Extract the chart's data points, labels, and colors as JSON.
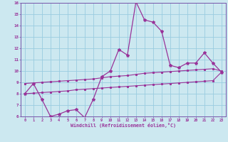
{
  "xlabel": "Windchill (Refroidissement éolien,°C)",
  "bg_color": "#cce8f0",
  "grid_color": "#99cce0",
  "line_color": "#993399",
  "spine_color": "#7755aa",
  "xlim": [
    -0.5,
    23.5
  ],
  "ylim": [
    6,
    16
  ],
  "xticks": [
    0,
    1,
    2,
    3,
    4,
    5,
    6,
    7,
    8,
    9,
    10,
    11,
    12,
    13,
    14,
    15,
    16,
    17,
    18,
    19,
    20,
    21,
    22,
    23
  ],
  "yticks": [
    6,
    7,
    8,
    9,
    10,
    11,
    12,
    13,
    14,
    15,
    16
  ],
  "main_y": [
    8.0,
    8.9,
    7.5,
    6.0,
    6.2,
    6.5,
    6.6,
    5.9,
    7.5,
    9.5,
    10.0,
    11.9,
    11.4,
    16.1,
    14.5,
    14.3,
    13.5,
    10.5,
    10.3,
    10.7,
    10.7,
    11.6,
    10.7,
    9.9
  ],
  "upper_y": [
    8.9,
    8.95,
    9.0,
    9.05,
    9.1,
    9.15,
    9.2,
    9.25,
    9.3,
    9.4,
    9.5,
    9.55,
    9.6,
    9.7,
    9.8,
    9.85,
    9.9,
    9.95,
    10.0,
    10.05,
    10.1,
    10.15,
    10.2,
    10.0
  ],
  "lower_y": [
    8.0,
    8.05,
    8.1,
    8.15,
    8.2,
    8.25,
    8.35,
    8.4,
    8.45,
    8.5,
    8.55,
    8.6,
    8.65,
    8.7,
    8.75,
    8.8,
    8.85,
    8.9,
    8.95,
    9.0,
    9.05,
    9.1,
    9.15,
    9.9
  ]
}
